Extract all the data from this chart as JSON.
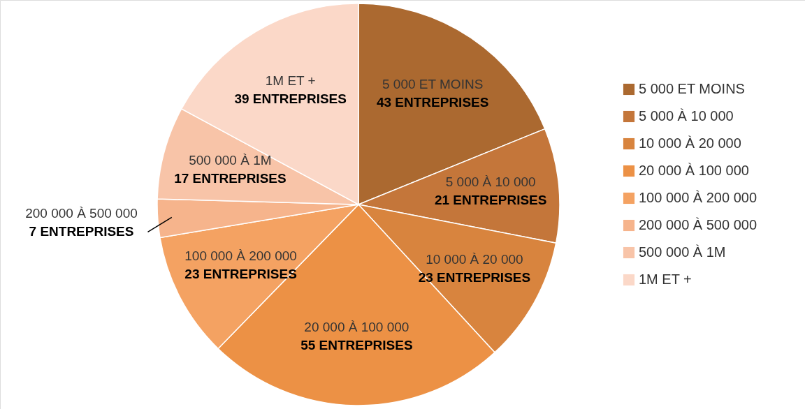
{
  "chart_data": {
    "type": "pie",
    "categories": [
      "5 000 ET MOINS",
      "5 000 À 10 000",
      "10 000 À 20 000",
      "20 000 À 100 000",
      "100 000 À 200 000",
      "200 000 À 500 000",
      "500 000 À 1M",
      "1M ET +"
    ],
    "values": [
      43,
      21,
      23,
      55,
      23,
      7,
      17,
      39
    ],
    "value_labels": [
      "43 ENTREPRISES",
      "21 ENTREPRISES",
      "23 ENTREPRISES",
      "55 ENTREPRISES",
      "23 ENTREPRISES",
      "7 ENTREPRISES",
      "17 ENTREPRISES",
      "39 ENTREPRISES"
    ],
    "colors": [
      "#ab6930",
      "#c4763a",
      "#d8843e",
      "#ec9145",
      "#f4a262",
      "#f6b48c",
      "#f8c4a8",
      "#fbd8c8"
    ],
    "legend": "right"
  }
}
